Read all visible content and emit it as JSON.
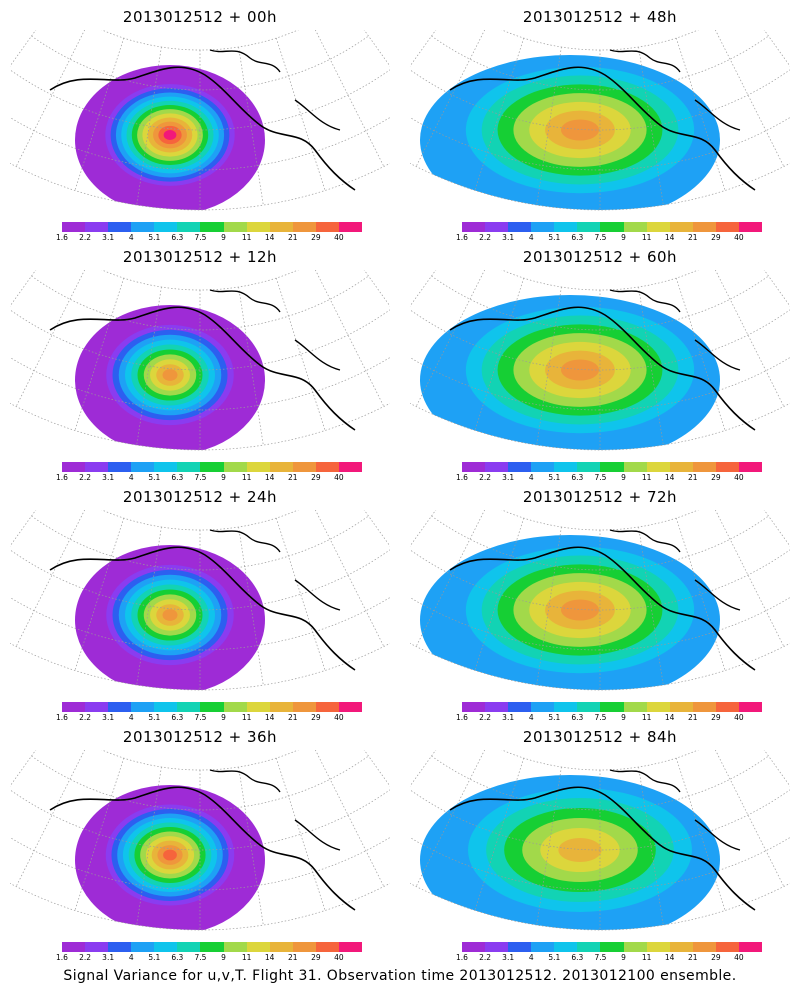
{
  "panels": [
    {
      "title": "2013012512 + 00h",
      "max_level": 12
    },
    {
      "title": "2013012512 + 48h",
      "max_level": 10
    },
    {
      "title": "2013012512 + 12h",
      "max_level": 10
    },
    {
      "title": "2013012512 + 60h",
      "max_level": 10
    },
    {
      "title": "2013012512 + 24h",
      "max_level": 10
    },
    {
      "title": "2013012512 + 72h",
      "max_level": 10
    },
    {
      "title": "2013012512 + 36h",
      "max_level": 11
    },
    {
      "title": "2013012512 + 84h",
      "max_level": 9
    }
  ],
  "colorbar": {
    "colors": [
      "#9e2bd6",
      "#8a3cf0",
      "#2c5ff0",
      "#1ea1f5",
      "#0fc4ec",
      "#12d3b4",
      "#16cf34",
      "#a2d94a",
      "#dcd63c",
      "#e8b43a",
      "#ef963c",
      "#f6643c",
      "#f2187a"
    ],
    "ticks": [
      "1.6",
      "2.2",
      "3.1",
      "4",
      "5.1",
      "6.3",
      "7.5",
      "9",
      "11",
      "14",
      "21",
      "29",
      "40"
    ]
  },
  "footer": "Signal Variance for u,v,T. Flight 31. Observation time 2013012512. 2013012100 ensemble."
}
